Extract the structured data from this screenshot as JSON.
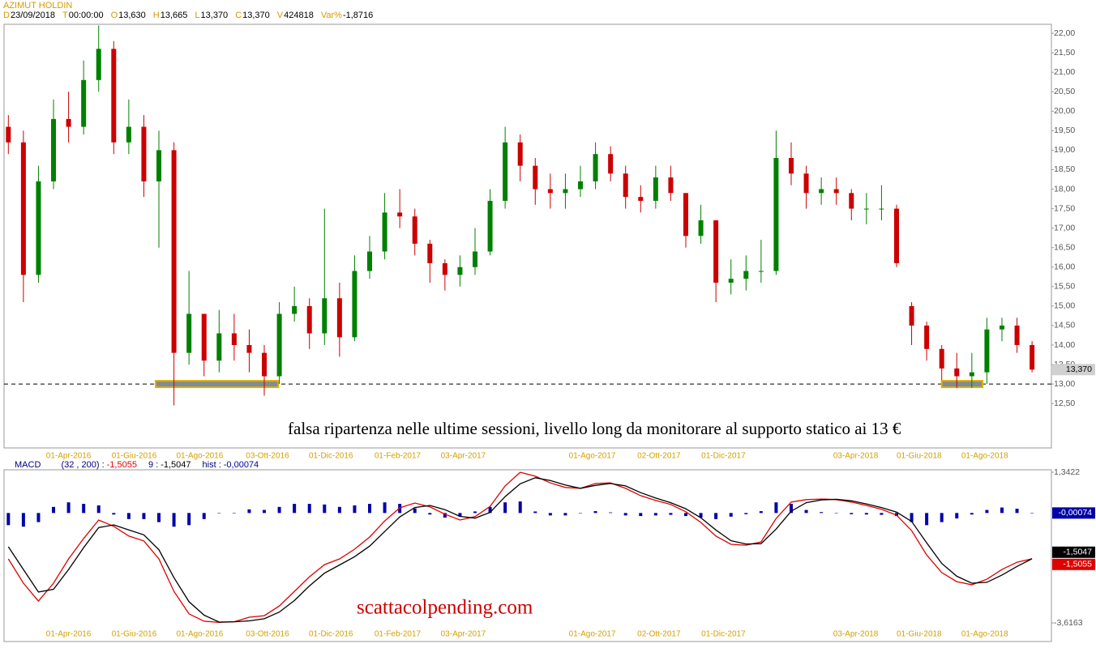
{
  "header": {
    "symbol": "AZIMUT HOLDIN",
    "fields": [
      {
        "key": "D",
        "value": "23/09/2018"
      },
      {
        "key": "T",
        "value": "00:00:00"
      },
      {
        "key": "O",
        "value": "13,630"
      },
      {
        "key": "H",
        "value": "13,665"
      },
      {
        "key": "L",
        "value": "13,370"
      },
      {
        "key": "C",
        "value": "13,370"
      },
      {
        "key": "V",
        "value": "424818"
      },
      {
        "key": "Var%",
        "value": "-1,8716"
      }
    ]
  },
  "chart_data": [
    {
      "type": "candlestick",
      "up_color": "#008000",
      "down_color": "#cc0000",
      "x": [
        "2016-02-05",
        "2016-02-19",
        "2016-03-04",
        "2016-03-18",
        "2016-04-01",
        "2016-04-15",
        "2016-04-29",
        "2016-05-13",
        "2016-05-27",
        "2016-06-10",
        "2016-06-24",
        "2016-07-08",
        "2016-07-22",
        "2016-08-05",
        "2016-08-19",
        "2016-09-02",
        "2016-09-16",
        "2016-09-30",
        "2016-10-14",
        "2016-10-28",
        "2016-11-11",
        "2016-11-25",
        "2016-12-09",
        "2016-12-23",
        "2017-01-06",
        "2017-01-20",
        "2017-02-03",
        "2017-02-17",
        "2017-03-03",
        "2017-03-17",
        "2017-03-31",
        "2017-04-14",
        "2017-04-28",
        "2017-05-12",
        "2017-05-26",
        "2017-06-09",
        "2017-06-23",
        "2017-07-07",
        "2017-07-21",
        "2017-08-04",
        "2017-08-18",
        "2017-09-01",
        "2017-09-15",
        "2017-09-29",
        "2017-10-13",
        "2017-10-27",
        "2017-11-10",
        "2017-11-24",
        "2017-12-08",
        "2017-12-22",
        "2018-01-05",
        "2018-01-19",
        "2018-02-02",
        "2018-02-16",
        "2018-03-02",
        "2018-03-16",
        "2018-03-30",
        "2018-04-13",
        "2018-04-27",
        "2018-05-11",
        "2018-05-25",
        "2018-06-08",
        "2018-06-22",
        "2018-07-06",
        "2018-07-20",
        "2018-08-03",
        "2018-08-17",
        "2018-08-31",
        "2018-09-14"
      ],
      "open": [
        19.6,
        19.2,
        15.8,
        18.2,
        19.8,
        19.6,
        20.8,
        21.6,
        19.2,
        19.6,
        18.2,
        19.0,
        13.8,
        14.8,
        13.6,
        14.3,
        14.0,
        13.8,
        13.2,
        14.8,
        15.0,
        14.3,
        15.2,
        14.2,
        15.9,
        16.4,
        17.4,
        17.3,
        16.6,
        16.1,
        15.8,
        16.0,
        16.4,
        17.7,
        19.2,
        18.6,
        18.0,
        17.9,
        18.0,
        18.2,
        18.9,
        18.4,
        17.8,
        17.7,
        18.3,
        17.9,
        16.8,
        17.2,
        15.6,
        15.7,
        15.9,
        15.9,
        18.8,
        18.4,
        17.9,
        18.0,
        17.9,
        17.5,
        17.5,
        17.5,
        15.0,
        14.5,
        13.9,
        13.4,
        13.2,
        13.3,
        14.4,
        14.5,
        14.0
      ],
      "high": [
        19.9,
        19.5,
        18.6,
        20.3,
        20.5,
        21.3,
        22.2,
        21.8,
        20.3,
        19.9,
        19.5,
        19.2,
        15.9,
        14.8,
        14.9,
        14.8,
        14.4,
        14.0,
        15.1,
        15.5,
        15.2,
        17.5,
        15.6,
        16.3,
        16.8,
        17.9,
        18.0,
        17.5,
        16.7,
        16.2,
        16.3,
        17.0,
        18.0,
        19.6,
        19.4,
        18.8,
        18.4,
        18.4,
        18.6,
        19.2,
        19.1,
        18.6,
        18.1,
        18.6,
        18.6,
        17.9,
        17.6,
        17.2,
        16.2,
        16.3,
        16.7,
        19.5,
        19.2,
        18.6,
        18.3,
        18.3,
        18.0,
        17.9,
        18.1,
        17.6,
        15.1,
        14.6,
        14.0,
        13.8,
        13.8,
        14.7,
        14.7,
        14.7,
        14.1
      ],
      "low": [
        18.9,
        15.1,
        15.6,
        18.0,
        19.2,
        19.4,
        20.5,
        18.9,
        18.9,
        17.8,
        16.5,
        12.45,
        13.5,
        13.2,
        13.3,
        13.6,
        13.3,
        12.7,
        13.0,
        14.6,
        13.9,
        14.0,
        13.7,
        14.1,
        15.7,
        16.2,
        17.0,
        16.3,
        15.6,
        15.4,
        15.5,
        15.8,
        16.3,
        17.5,
        18.2,
        17.6,
        17.5,
        17.5,
        17.8,
        18.0,
        18.2,
        17.5,
        17.4,
        17.5,
        17.7,
        16.5,
        16.6,
        15.1,
        15.3,
        15.4,
        15.6,
        15.8,
        18.1,
        17.5,
        17.6,
        17.6,
        17.2,
        17.1,
        17.2,
        16.0,
        14.0,
        13.6,
        13.1,
        12.9,
        12.9,
        13.0,
        14.1,
        13.8,
        13.3
      ],
      "close": [
        19.2,
        15.8,
        18.2,
        19.8,
        19.6,
        20.8,
        21.6,
        19.2,
        19.6,
        18.2,
        19.0,
        13.8,
        14.8,
        13.6,
        14.3,
        14.0,
        13.8,
        13.2,
        14.8,
        15.0,
        14.3,
        15.2,
        14.2,
        15.9,
        16.4,
        17.4,
        17.3,
        16.6,
        16.1,
        15.8,
        16.0,
        16.4,
        17.7,
        19.2,
        18.6,
        18.0,
        17.9,
        18.0,
        18.2,
        18.9,
        18.4,
        17.8,
        17.7,
        18.3,
        17.9,
        16.8,
        17.2,
        15.6,
        15.7,
        15.9,
        15.9,
        18.8,
        18.4,
        17.9,
        18.0,
        17.9,
        17.5,
        17.5,
        17.5,
        16.1,
        14.5,
        13.9,
        13.4,
        13.2,
        13.3,
        14.4,
        14.5,
        14.0,
        13.37
      ],
      "last_label": "13,370",
      "xlim": [
        "2016-02-01",
        "2018-10-02"
      ],
      "xticks": [
        {
          "value": "2016-04-01",
          "label": "01-Apr-2016"
        },
        {
          "value": "2016-06-01",
          "label": "01-Giu-2016"
        },
        {
          "value": "2016-08-01",
          "label": "01-Ago-2016"
        },
        {
          "value": "2016-10-03",
          "label": "03-Ott-2016"
        },
        {
          "value": "2016-12-01",
          "label": "01-Dic-2016"
        },
        {
          "value": "2017-02-01",
          "label": "01-Feb-2017"
        },
        {
          "value": "2017-04-03",
          "label": "03-Apr-2017"
        },
        {
          "value": "2017-08-01",
          "label": "01-Ago-2017"
        },
        {
          "value": "2017-10-02",
          "label": "02-Ott-2017"
        },
        {
          "value": "2017-12-01",
          "label": "01-Dic-2017"
        },
        {
          "value": "2018-04-03",
          "label": "03-Apr-2018"
        },
        {
          "value": "2018-06-01",
          "label": "01-Giu-2018"
        },
        {
          "value": "2018-08-01",
          "label": "01-Ago-2018"
        }
      ],
      "ylim": [
        11.36,
        22.23
      ],
      "yticks": [
        {
          "value": 12.5,
          "label": "12,50"
        },
        {
          "value": 13,
          "label": "13,00"
        },
        {
          "value": 13.5,
          "label": "13,50"
        },
        {
          "value": 14,
          "label": "14,00"
        },
        {
          "value": 14.5,
          "label": "14,50"
        },
        {
          "value": 15,
          "label": "15,00"
        },
        {
          "value": 15.5,
          "label": "15,50"
        },
        {
          "value": 16,
          "label": "16,00"
        },
        {
          "value": 16.5,
          "label": "16,50"
        },
        {
          "value": 17,
          "label": "17,00"
        },
        {
          "value": 17.5,
          "label": "17,50"
        },
        {
          "value": 18,
          "label": "18,00"
        },
        {
          "value": 18.5,
          "label": "18,50"
        },
        {
          "value": 19,
          "label": "19,00"
        },
        {
          "value": 19.5,
          "label": "19,50"
        },
        {
          "value": 20,
          "label": "20,00"
        },
        {
          "value": 20.5,
          "label": "20,50"
        },
        {
          "value": 21,
          "label": "21,00"
        },
        {
          "value": 21.5,
          "label": "21,50"
        },
        {
          "value": 22,
          "label": "22,00"
        }
      ],
      "support": {
        "value": 13,
        "zones": [
          [
            "2016-06-21",
            "2016-10-13"
          ],
          [
            "2018-06-22",
            "2018-07-30"
          ]
        ]
      },
      "annotation": "falsa ripartenza nelle ultime sessioni, livello long da monitorare al supporto statico ai 13 €"
    },
    {
      "type": "macd",
      "title": "MACD",
      "x": [
        "2016-02-05",
        "2016-02-19",
        "2016-03-04",
        "2016-03-18",
        "2016-04-01",
        "2016-04-15",
        "2016-04-29",
        "2016-05-13",
        "2016-05-27",
        "2016-06-10",
        "2016-06-24",
        "2016-07-08",
        "2016-07-22",
        "2016-08-05",
        "2016-08-19",
        "2016-09-02",
        "2016-09-16",
        "2016-09-30",
        "2016-10-14",
        "2016-10-28",
        "2016-11-11",
        "2016-11-25",
        "2016-12-09",
        "2016-12-23",
        "2017-01-06",
        "2017-01-20",
        "2017-02-03",
        "2017-02-17",
        "2017-03-03",
        "2017-03-17",
        "2017-03-31",
        "2017-04-14",
        "2017-04-28",
        "2017-05-12",
        "2017-05-26",
        "2017-06-09",
        "2017-06-23",
        "2017-07-07",
        "2017-07-21",
        "2017-08-04",
        "2017-08-18",
        "2017-09-01",
        "2017-09-15",
        "2017-09-29",
        "2017-10-13",
        "2017-10-27",
        "2017-11-10",
        "2017-11-24",
        "2017-12-08",
        "2017-12-22",
        "2018-01-05",
        "2018-01-19",
        "2018-02-02",
        "2018-02-16",
        "2018-03-02",
        "2018-03-16",
        "2018-03-30",
        "2018-04-13",
        "2018-04-27",
        "2018-05-11",
        "2018-05-25",
        "2018-06-08",
        "2018-06-22",
        "2018-07-06",
        "2018-07-20",
        "2018-08-03",
        "2018-08-17",
        "2018-08-31",
        "2018-09-14"
      ],
      "series": [
        {
          "name": "(32 , 200) :",
          "color": "#e00000",
          "kind": "line",
          "last_label": "-1,5055",
          "values": [
            -1.51,
            -2.31,
            -2.9,
            -2.31,
            -1.51,
            -0.84,
            -0.23,
            -0.44,
            -0.76,
            -0.92,
            -1.51,
            -2.58,
            -3.32,
            -3.56,
            -3.6,
            -3.58,
            -3.43,
            -3.38,
            -3.06,
            -2.58,
            -2.1,
            -1.7,
            -1.51,
            -1.19,
            -0.79,
            -0.26,
            0.17,
            0.33,
            0.2,
            -0.04,
            -0.23,
            -0.12,
            0.22,
            0.89,
            1.34,
            1.21,
            0.99,
            0.84,
            0.81,
            0.97,
            0.99,
            0.81,
            0.57,
            0.41,
            0.28,
            0.04,
            -0.31,
            -0.76,
            -1.03,
            -1.06,
            -0.95,
            -0.18,
            0.36,
            0.44,
            0.46,
            0.44,
            0.36,
            0.25,
            0.12,
            -0.07,
            -0.58,
            -1.38,
            -1.96,
            -2.26,
            -2.36,
            -2.18,
            -1.86,
            -1.62,
            -1.5055
          ]
        },
        {
          "name": "9 :",
          "color": "#000000",
          "kind": "line",
          "last_label": "-1,5047",
          "values": [
            -1.11,
            -1.86,
            -2.6,
            -2.51,
            -1.86,
            -1.14,
            -0.48,
            -0.39,
            -0.56,
            -0.72,
            -1.21,
            -2.13,
            -2.92,
            -3.36,
            -3.59,
            -3.58,
            -3.55,
            -3.48,
            -3.26,
            -2.88,
            -2.4,
            -1.98,
            -1.71,
            -1.44,
            -1.09,
            -0.61,
            -0.13,
            0.18,
            0.25,
            0.11,
            -0.11,
            -0.17,
            0.02,
            0.54,
            0.96,
            1.16,
            1.07,
            0.92,
            0.81,
            0.91,
            0.97,
            0.89,
            0.67,
            0.49,
            0.34,
            0.14,
            -0.16,
            -0.56,
            -0.91,
            -1.02,
            -1.01,
            -0.53,
            0.06,
            0.34,
            0.43,
            0.45,
            0.4,
            0.3,
            0.18,
            0.03,
            -0.28,
            -0.98,
            -1.66,
            -2.08,
            -2.31,
            -2.28,
            -2.04,
            -1.76,
            -1.5047
          ]
        },
        {
          "name": "hist :",
          "color": "#0000aa",
          "kind": "bar",
          "last_label": "-0,00074",
          "values": [
            -0.4,
            -0.45,
            -0.3,
            0.2,
            0.35,
            0.3,
            0.25,
            -0.05,
            -0.2,
            -0.2,
            -0.3,
            -0.45,
            -0.4,
            -0.2,
            -0.01,
            0,
            0.12,
            0.1,
            0.2,
            0.3,
            0.3,
            0.28,
            0.2,
            0.25,
            0.3,
            0.35,
            0.3,
            0.15,
            -0.05,
            -0.15,
            -0.12,
            0.05,
            0.2,
            0.35,
            0.38,
            0.05,
            -0.08,
            -0.08,
            0,
            0.06,
            0.02,
            -0.08,
            -0.1,
            -0.08,
            -0.06,
            -0.1,
            -0.15,
            -0.2,
            -0.12,
            -0.04,
            0.06,
            0.35,
            0.3,
            0.1,
            0.03,
            -0.01,
            -0.04,
            -0.05,
            -0.06,
            -0.1,
            -0.3,
            -0.4,
            -0.3,
            -0.18,
            -0.05,
            0.1,
            0.18,
            0.14,
            -0.00074
          ]
        }
      ],
      "xlim": [
        "2016-02-01",
        "2018-10-02"
      ],
      "xticks": [
        {
          "value": "2016-04-01",
          "label": "01-Apr-2016"
        },
        {
          "value": "2016-06-01",
          "label": "01-Giu-2016"
        },
        {
          "value": "2016-08-01",
          "label": "01-Ago-2016"
        },
        {
          "value": "2016-10-03",
          "label": "03-Ott-2016"
        },
        {
          "value": "2016-12-01",
          "label": "01-Dic-2016"
        },
        {
          "value": "2017-02-01",
          "label": "01-Feb-2017"
        },
        {
          "value": "2017-04-03",
          "label": "03-Apr-2017"
        },
        {
          "value": "2017-08-01",
          "label": "01-Ago-2017"
        },
        {
          "value": "2017-10-02",
          "label": "02-Ott-2017"
        },
        {
          "value": "2017-12-01",
          "label": "01-Dic-2017"
        },
        {
          "value": "2018-04-03",
          "label": "03-Apr-2018"
        },
        {
          "value": "2018-06-01",
          "label": "01-Giu-2018"
        },
        {
          "value": "2018-08-01",
          "label": "01-Ago-2018"
        }
      ],
      "ylim": [
        -4.23,
        1.475
      ],
      "yticks": [
        {
          "value": 1.3422,
          "label": "1,3422"
        },
        {
          "value": -3.6163,
          "label": "-3,6163"
        }
      ],
      "annotation": "scattacolpending.com"
    }
  ]
}
